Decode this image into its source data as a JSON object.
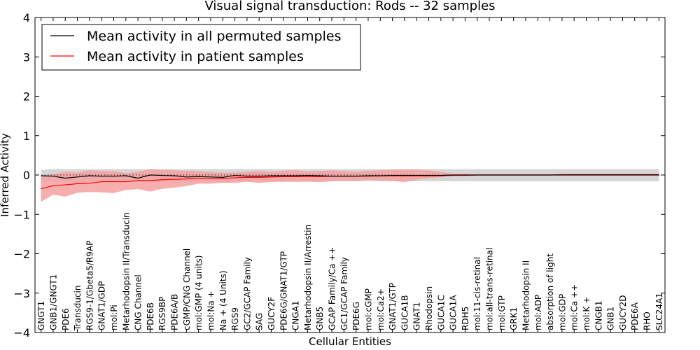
{
  "chart_data": {
    "type": "line",
    "title": "Visual signal transduction: Rods -- 32 samples",
    "xlabel": "Cellular Entities",
    "ylabel": "Inferred Activity",
    "ylim": [
      -4,
      4
    ],
    "yticks": [
      "4",
      "3",
      "2",
      "1",
      "0",
      "−1",
      "−2",
      "−3",
      "−4"
    ],
    "ytick_values": [
      4,
      3,
      2,
      1,
      0,
      -1,
      -2,
      -3,
      -4
    ],
    "legend_position": "top-left",
    "categories": [
      "GNGT1",
      "GNB1/GNGT1",
      "PDE6",
      "Transducin",
      "RGS9-1/Gbeta5/R9AP",
      "GNAT1/GDP",
      "mol:Pi",
      "Metarhodopsin II/Transducin",
      "CNG Channel",
      "PDE6B",
      "RGS9BP",
      "PDE6A/B",
      "cGMP/CNG Channel",
      "mol:GMP (4 units)",
      "mol:Na +",
      "Na + (4 Units)",
      "RGS9",
      "GC2/GCAP Family",
      "SAG",
      "GUCY2F",
      "PDE6G/GNAT1/GTP",
      "CNGA1",
      "Metarhodopsin II/Arrestin",
      "GNB5",
      "GCAP Family/Ca ++",
      "GC1/GCAP Family",
      "PDE6G",
      "mol:cGMP",
      "mol:Ca2+",
      "GNAT1/GTP",
      "GUCA1B",
      "GNAT1",
      "Rhodopsin",
      "GUCA1C",
      "GUCA1A",
      "RDH5",
      "mol:11-cis-retinal",
      "mol:all-trans-retinal",
      "mol:GTP",
      "GRK1",
      "Metarhodopsin II",
      "mol:ADP",
      "absorption of light",
      "mol:GDP",
      "mol:Ca ++",
      "mol:K +",
      "CNGB1",
      "GNB1",
      "GUCY2D",
      "PDE6A",
      "RHO",
      "SLC24A1"
    ],
    "series": [
      {
        "name": "Mean activity in all permuted samples",
        "color": "#000000",
        "band_color": "#cccccc",
        "values": [
          -0.02,
          -0.03,
          -0.08,
          -0.05,
          -0.02,
          -0.03,
          -0.03,
          -0.02,
          -0.08,
          0.0,
          -0.01,
          -0.02,
          -0.05,
          -0.04,
          -0.05,
          -0.06,
          -0.01,
          -0.03,
          -0.03,
          -0.02,
          -0.02,
          -0.02,
          -0.01,
          -0.02,
          -0.03,
          -0.03,
          -0.03,
          -0.02,
          -0.02,
          -0.01,
          -0.01,
          -0.01,
          -0.01,
          -0.01,
          0.0,
          0.0,
          0.0,
          0.0,
          0.0,
          0.0,
          0.0,
          0.0,
          0.0,
          0.0,
          0.0,
          0.0,
          0.0,
          0.0,
          0.0,
          0.0,
          0.0,
          0.0
        ],
        "band_lower": [
          -0.15,
          -0.18,
          -0.18,
          -0.18,
          -0.17,
          -0.17,
          -0.17,
          -0.17,
          -0.17,
          -0.17,
          -0.17,
          -0.17,
          -0.17,
          -0.17,
          -0.17,
          -0.17,
          -0.17,
          -0.17,
          -0.16,
          -0.16,
          -0.16,
          -0.16,
          -0.16,
          -0.16,
          -0.16,
          -0.16,
          -0.16,
          -0.16,
          -0.16,
          -0.16,
          -0.16,
          -0.16,
          -0.16,
          -0.16,
          -0.16,
          -0.16,
          -0.16,
          -0.16,
          -0.16,
          -0.16,
          -0.16,
          -0.16,
          -0.16,
          -0.16,
          -0.16,
          -0.16,
          -0.16,
          -0.16,
          -0.16,
          -0.16,
          -0.16,
          -0.16
        ],
        "band_upper": [
          0.13,
          0.15,
          0.15,
          0.15,
          0.15,
          0.15,
          0.15,
          0.15,
          0.15,
          0.15,
          0.15,
          0.15,
          0.15,
          0.15,
          0.15,
          0.15,
          0.15,
          0.15,
          0.15,
          0.15,
          0.15,
          0.15,
          0.15,
          0.15,
          0.15,
          0.15,
          0.15,
          0.15,
          0.15,
          0.15,
          0.15,
          0.15,
          0.15,
          0.15,
          0.15,
          0.15,
          0.15,
          0.15,
          0.15,
          0.15,
          0.15,
          0.15,
          0.15,
          0.15,
          0.15,
          0.15,
          0.15,
          0.15,
          0.15,
          0.15,
          0.15,
          0.15
        ]
      },
      {
        "name": "Mean activity in patient samples",
        "color": "#ff0000",
        "band_color": "#f4a0a0",
        "values": [
          -0.35,
          -0.27,
          -0.25,
          -0.22,
          -0.21,
          -0.17,
          -0.17,
          -0.17,
          -0.14,
          -0.14,
          -0.12,
          -0.11,
          -0.1,
          -0.08,
          -0.09,
          -0.09,
          -0.07,
          -0.06,
          -0.06,
          -0.05,
          -0.04,
          -0.04,
          -0.04,
          -0.04,
          -0.03,
          -0.03,
          -0.03,
          -0.03,
          -0.02,
          -0.02,
          -0.02,
          -0.02,
          -0.02,
          -0.02,
          -0.01,
          -0.01,
          0.0,
          0.0,
          0.0,
          0.0,
          0.0,
          0.0,
          0.0,
          0.01,
          0.01,
          0.01,
          0.01,
          0.01,
          0.01,
          0.01,
          0.01,
          0.01
        ],
        "band_lower": [
          -0.68,
          -0.5,
          -0.55,
          -0.45,
          -0.43,
          -0.44,
          -0.46,
          -0.38,
          -0.36,
          -0.42,
          -0.35,
          -0.32,
          -0.28,
          -0.22,
          -0.22,
          -0.2,
          -0.2,
          -0.17,
          -0.2,
          -0.18,
          -0.17,
          -0.17,
          -0.17,
          -0.18,
          -0.16,
          -0.14,
          -0.15,
          -0.12,
          -0.14,
          -0.15,
          -0.18,
          -0.12,
          -0.08,
          -0.05,
          -0.02,
          -0.02,
          -0.01,
          -0.01,
          -0.01,
          -0.01,
          -0.01,
          -0.01,
          -0.01,
          -0.01,
          -0.01,
          -0.01,
          -0.01,
          -0.01,
          -0.01,
          -0.01,
          -0.01,
          -0.01
        ],
        "band_upper": [
          -0.02,
          0.02,
          0.08,
          0.06,
          0.12,
          0.1,
          0.1,
          0.05,
          0.08,
          0.15,
          0.13,
          0.12,
          0.1,
          0.1,
          0.07,
          0.06,
          0.06,
          0.08,
          0.1,
          0.08,
          0.11,
          0.12,
          0.09,
          0.1,
          0.12,
          0.1,
          0.08,
          0.11,
          0.12,
          0.13,
          0.14,
          0.14,
          0.12,
          0.08,
          0.03,
          0.03,
          0.02,
          0.02,
          0.02,
          0.02,
          0.02,
          0.02,
          0.02,
          0.02,
          0.03,
          0.03,
          0.03,
          0.03,
          0.03,
          0.03,
          0.03,
          0.03
        ]
      }
    ]
  }
}
